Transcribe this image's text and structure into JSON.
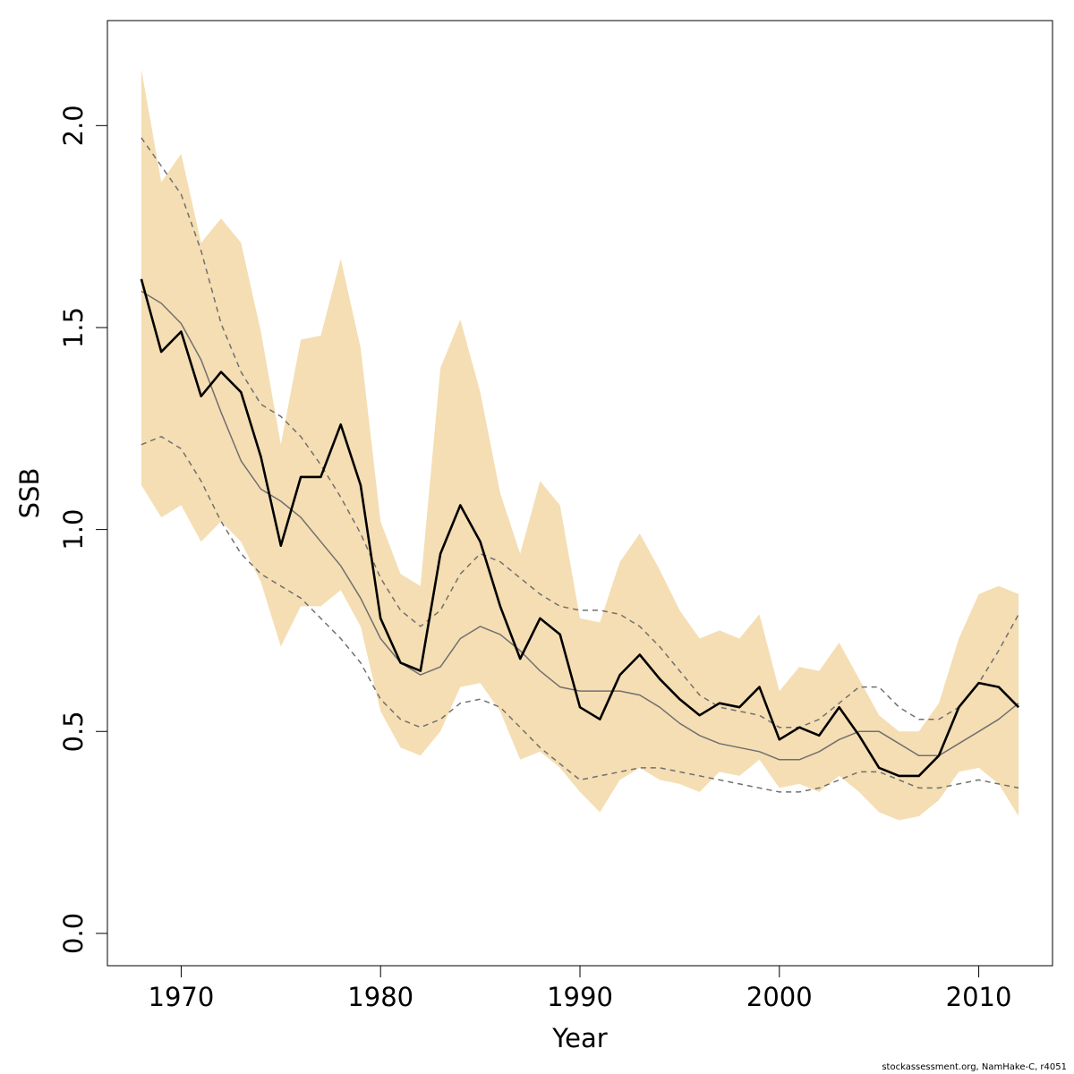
{
  "chart_data": {
    "type": "line",
    "xlabel": "Year",
    "ylabel": "SSB",
    "xlim": [
      1966.3,
      2013.7
    ],
    "ylim": [
      -0.08,
      2.26
    ],
    "x_ticks": [
      1970,
      1980,
      1990,
      2000,
      2010
    ],
    "x_tick_labels": [
      "1970",
      "1980",
      "1990",
      "2000",
      "2010"
    ],
    "y_ticks": [
      0.0,
      0.5,
      1.0,
      1.5,
      2.0
    ],
    "y_tick_labels": [
      "0.0",
      "0.5",
      "1.0",
      "1.5",
      "2.0"
    ],
    "grid": false,
    "legend": "none",
    "x": [
      1968,
      1969,
      1970,
      1971,
      1972,
      1973,
      1974,
      1975,
      1976,
      1977,
      1978,
      1979,
      1980,
      1981,
      1982,
      1983,
      1984,
      1985,
      1986,
      1987,
      1988,
      1989,
      1990,
      1991,
      1992,
      1993,
      1994,
      1995,
      1996,
      1997,
      1998,
      1999,
      2000,
      2001,
      2002,
      2003,
      2004,
      2005,
      2006,
      2007,
      2008,
      2009,
      2010,
      2011,
      2012
    ],
    "series": [
      {
        "kind": "band",
        "color": "#f5deb3",
        "upper": [
          2.14,
          1.86,
          1.93,
          1.71,
          1.77,
          1.71,
          1.49,
          1.21,
          1.47,
          1.48,
          1.67,
          1.45,
          1.02,
          0.89,
          0.86,
          1.4,
          1.52,
          1.34,
          1.09,
          0.94,
          1.12,
          1.06,
          0.78,
          0.77,
          0.92,
          0.99,
          0.9,
          0.8,
          0.73,
          0.75,
          0.73,
          0.79,
          0.6,
          0.66,
          0.65,
          0.72,
          0.63,
          0.54,
          0.5,
          0.5,
          0.57,
          0.73,
          0.84,
          0.86,
          0.84
        ],
        "lower": [
          1.11,
          1.03,
          1.06,
          0.97,
          1.02,
          0.97,
          0.87,
          0.71,
          0.81,
          0.81,
          0.85,
          0.76,
          0.55,
          0.46,
          0.44,
          0.5,
          0.61,
          0.62,
          0.55,
          0.43,
          0.45,
          0.41,
          0.35,
          0.3,
          0.38,
          0.41,
          0.38,
          0.37,
          0.35,
          0.4,
          0.39,
          0.43,
          0.36,
          0.37,
          0.35,
          0.39,
          0.35,
          0.3,
          0.28,
          0.29,
          0.33,
          0.4,
          0.41,
          0.37,
          0.29
        ]
      },
      {
        "kind": "upper-dashed",
        "color": "#707070",
        "dashed": true,
        "values": [
          1.97,
          1.9,
          1.83,
          1.69,
          1.51,
          1.39,
          1.31,
          1.28,
          1.23,
          1.16,
          1.08,
          0.99,
          0.88,
          0.8,
          0.76,
          0.8,
          0.89,
          0.94,
          0.92,
          0.88,
          0.84,
          0.81,
          0.8,
          0.8,
          0.79,
          0.76,
          0.71,
          0.65,
          0.59,
          0.56,
          0.55,
          0.54,
          0.51,
          0.51,
          0.53,
          0.57,
          0.61,
          0.61,
          0.56,
          0.53,
          0.53,
          0.56,
          0.62,
          0.7,
          0.79
        ]
      },
      {
        "kind": "median",
        "color": "#707070",
        "dashed": false,
        "values": [
          1.59,
          1.56,
          1.51,
          1.42,
          1.29,
          1.17,
          1.1,
          1.07,
          1.03,
          0.97,
          0.91,
          0.83,
          0.73,
          0.67,
          0.64,
          0.66,
          0.73,
          0.76,
          0.74,
          0.7,
          0.65,
          0.61,
          0.6,
          0.6,
          0.6,
          0.59,
          0.56,
          0.52,
          0.49,
          0.47,
          0.46,
          0.45,
          0.43,
          0.43,
          0.45,
          0.48,
          0.5,
          0.5,
          0.47,
          0.44,
          0.44,
          0.47,
          0.5,
          0.53,
          0.57
        ]
      },
      {
        "kind": "lower-dashed",
        "color": "#707070",
        "dashed": true,
        "values": [
          1.21,
          1.23,
          1.2,
          1.12,
          1.02,
          0.94,
          0.89,
          0.86,
          0.83,
          0.78,
          0.73,
          0.67,
          0.58,
          0.53,
          0.51,
          0.53,
          0.57,
          0.58,
          0.56,
          0.51,
          0.46,
          0.42,
          0.38,
          0.39,
          0.4,
          0.41,
          0.41,
          0.4,
          0.39,
          0.38,
          0.37,
          0.36,
          0.35,
          0.35,
          0.36,
          0.38,
          0.4,
          0.4,
          0.38,
          0.36,
          0.36,
          0.37,
          0.38,
          0.37,
          0.36
        ]
      },
      {
        "kind": "estimate",
        "color": "#000000",
        "dashed": false,
        "values": [
          1.62,
          1.44,
          1.49,
          1.33,
          1.39,
          1.34,
          1.18,
          0.96,
          1.13,
          1.13,
          1.26,
          1.11,
          0.78,
          0.67,
          0.65,
          0.94,
          1.06,
          0.97,
          0.81,
          0.68,
          0.78,
          0.74,
          0.56,
          0.53,
          0.64,
          0.69,
          0.63,
          0.58,
          0.54,
          0.57,
          0.56,
          0.61,
          0.48,
          0.51,
          0.49,
          0.56,
          0.49,
          0.41,
          0.39,
          0.39,
          0.44,
          0.56,
          0.62,
          0.61,
          0.56
        ]
      }
    ]
  },
  "footer": {
    "credit": "stockassessment.org, NamHake-C, r4051"
  }
}
